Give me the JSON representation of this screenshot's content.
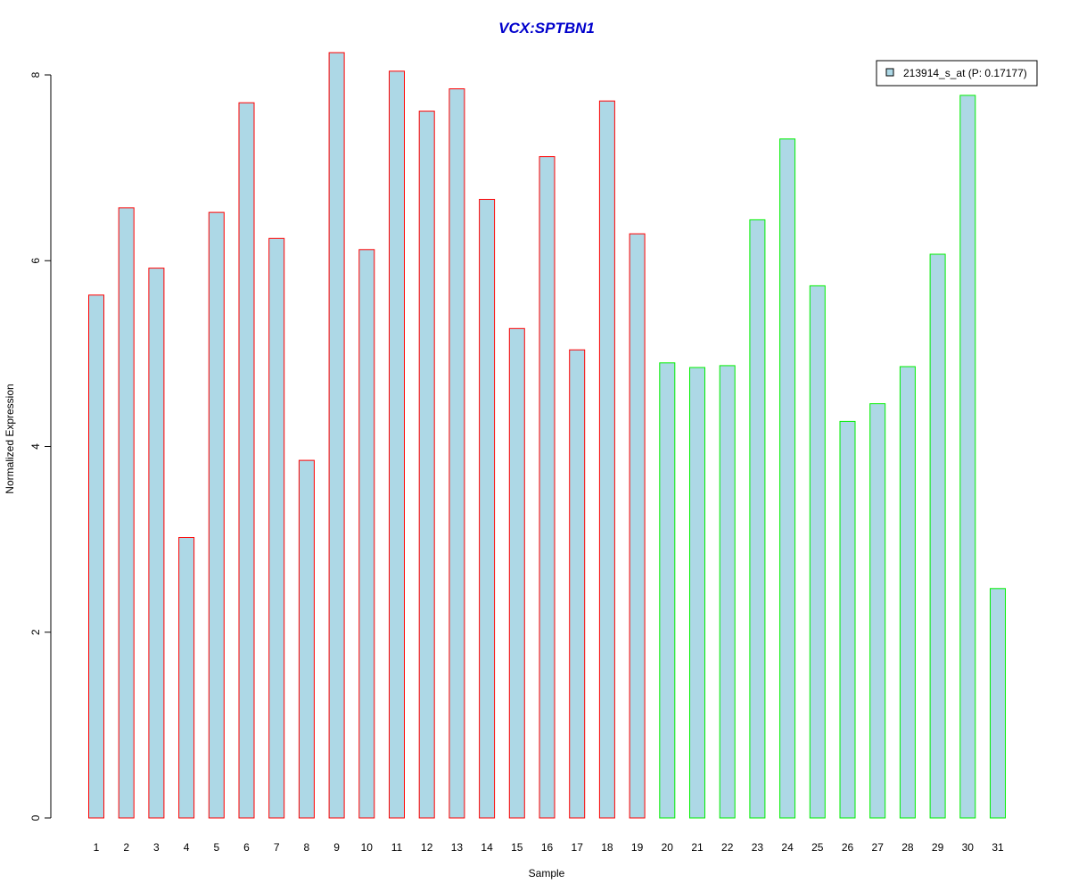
{
  "chart_data": {
    "type": "bar",
    "title": "VCX:SPTBN1",
    "xlabel": "Sample",
    "ylabel": "Normalized Expression",
    "ylim": [
      0,
      8.3
    ],
    "yticks": [
      0,
      2,
      4,
      6,
      8
    ],
    "categories": [
      "1",
      "2",
      "3",
      "4",
      "5",
      "6",
      "7",
      "8",
      "9",
      "10",
      "11",
      "12",
      "13",
      "14",
      "15",
      "16",
      "17",
      "18",
      "19",
      "20",
      "21",
      "22",
      "23",
      "24",
      "25",
      "26",
      "27",
      "28",
      "29",
      "30",
      "31"
    ],
    "series": [
      {
        "name": "213914_s_at (P: 0.17177)",
        "values": [
          5.63,
          6.57,
          5.92,
          3.02,
          6.52,
          7.7,
          6.24,
          3.85,
          8.24,
          6.12,
          8.04,
          7.61,
          7.85,
          6.66,
          5.27,
          7.12,
          5.04,
          7.72,
          6.29,
          4.9,
          4.85,
          4.87,
          6.44,
          7.31,
          5.73,
          4.27,
          4.46,
          4.86,
          6.07,
          7.78,
          2.47
        ]
      }
    ],
    "groups": [
      "a",
      "a",
      "a",
      "a",
      "a",
      "a",
      "a",
      "a",
      "a",
      "a",
      "a",
      "a",
      "a",
      "a",
      "a",
      "a",
      "a",
      "a",
      "a",
      "b",
      "b",
      "b",
      "b",
      "b",
      "b",
      "b",
      "b",
      "b",
      "b",
      "b",
      "b"
    ],
    "colors": {
      "fill": "#add8e6",
      "group_a_border": "#ff0000",
      "group_b_border": "#00ee00",
      "title": "#0000cc"
    },
    "legend": {
      "label": "213914_s_at (P: 0.17177)",
      "position": "top-right"
    },
    "grid": false
  }
}
